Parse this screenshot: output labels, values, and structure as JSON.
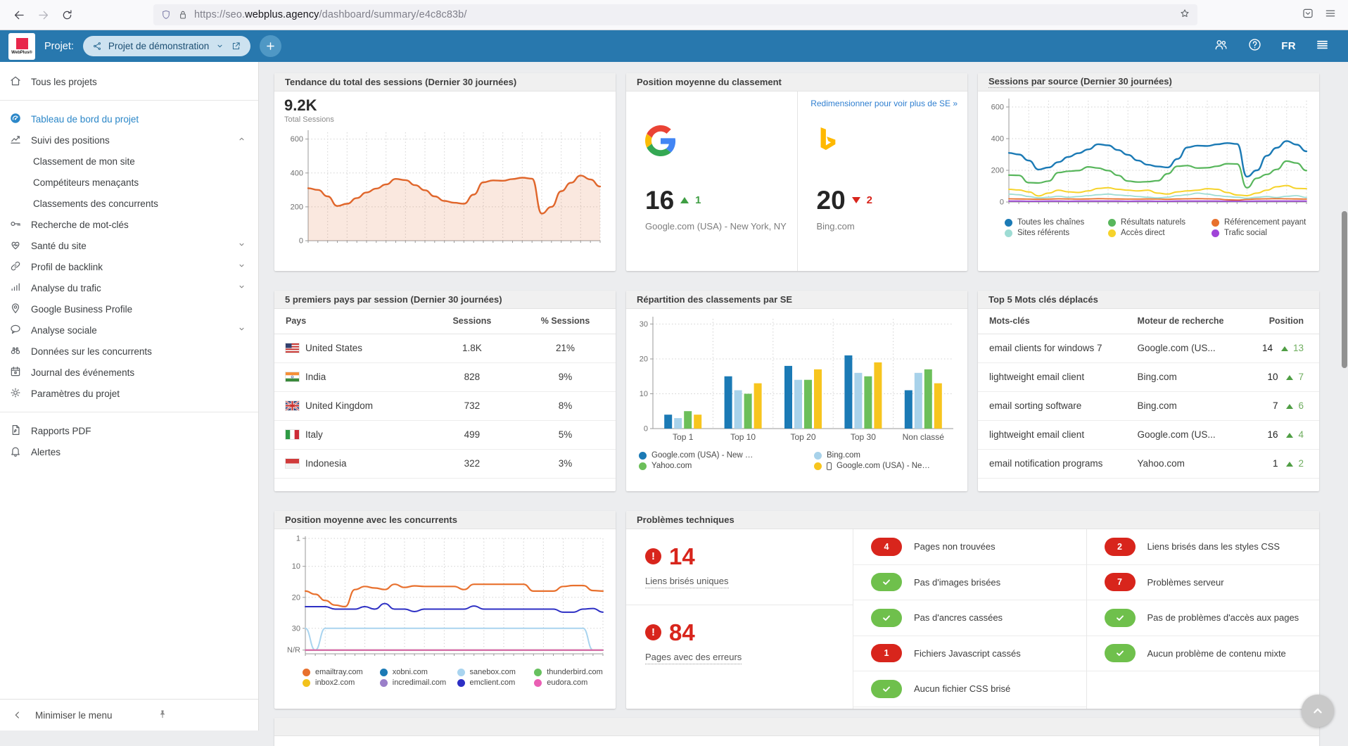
{
  "browser": {
    "url_protocol": "https://",
    "url_subdomain": "seo.",
    "url_domain": "webplus.agency",
    "url_path": "/dashboard/summary/e4c8c83b/"
  },
  "header": {
    "logo_text": "WebPlus®",
    "project_label": "Projet:",
    "project_name": "Projet de démonstration",
    "language": "FR",
    "accent_color": "#2878ae"
  },
  "sidebar": {
    "items": [
      {
        "icon": "home-icon",
        "label": "Tous les projets"
      },
      {
        "divider": true
      },
      {
        "icon": "dashboard-icon",
        "label": "Tableau de bord du projet",
        "active": true
      },
      {
        "icon": "positions-icon",
        "label": "Suivi des positions",
        "chevron": "up"
      },
      {
        "sub": true,
        "label": "Classement de mon site"
      },
      {
        "sub": true,
        "label": "Compétiteurs menaçants"
      },
      {
        "sub": true,
        "label": "Classements des concurrents"
      },
      {
        "icon": "key-icon",
        "label": "Recherche de mot-clés"
      },
      {
        "icon": "health-icon",
        "label": "Santé du site",
        "chevron": "down"
      },
      {
        "icon": "backlink-icon",
        "label": "Profil de backlink",
        "chevron": "down"
      },
      {
        "icon": "traffic-icon",
        "label": "Analyse du trafic",
        "chevron": "down"
      },
      {
        "icon": "gbp-icon",
        "label": "Google Business Profile"
      },
      {
        "icon": "social-icon",
        "label": "Analyse sociale",
        "chevron": "down"
      },
      {
        "icon": "competitors-icon",
        "label": "Données sur les concurrents"
      },
      {
        "icon": "events-icon",
        "label": "Journal des événements"
      },
      {
        "icon": "settings-icon",
        "label": "Paramètres du projet"
      },
      {
        "divider": true
      },
      {
        "icon": "pdf-icon",
        "label": "Rapports PDF"
      },
      {
        "icon": "alerts-icon",
        "label": "Alertes"
      }
    ],
    "footer": {
      "collapse_label": "Minimiser le menu"
    }
  },
  "cards": {
    "sessions_trend": {
      "title": "Tendance du total des sessions (Dernier 30 journées)",
      "total": "9.2K",
      "total_label": "Total Sessions"
    },
    "avg_position": {
      "title": "Position moyenne du classement",
      "resize_link": "Redimensionner pour voir plus de SE »",
      "engines": [
        {
          "engine": "google",
          "value": "16",
          "direction": "up",
          "change": "1",
          "caption": "Google.com (USA) - New York, NY"
        },
        {
          "engine": "bing",
          "value": "20",
          "direction": "down",
          "change": "2",
          "caption": "Bing.com"
        }
      ]
    },
    "sessions_by_source": {
      "title": "Sessions par source (Dernier 30 journées)"
    },
    "top_countries": {
      "title": "5 premiers pays par session (Dernier 30 journées)",
      "columns": [
        "Pays",
        "Sessions",
        "% Sessions"
      ],
      "rows": [
        {
          "flag": "us",
          "country": "United States",
          "sessions": "1.8K",
          "pct": "21%"
        },
        {
          "flag": "in",
          "country": "India",
          "sessions": "828",
          "pct": "9%"
        },
        {
          "flag": "uk",
          "country": "United Kingdom",
          "sessions": "732",
          "pct": "8%"
        },
        {
          "flag": "it",
          "country": "Italy",
          "sessions": "499",
          "pct": "5%"
        },
        {
          "flag": "id",
          "country": "Indonesia",
          "sessions": "322",
          "pct": "3%"
        }
      ]
    },
    "rankings_by_se": {
      "title": "Répartition des classements par SE"
    },
    "top_keywords": {
      "title": "Top 5 Mots clés déplacés",
      "columns": [
        "Mots-clés",
        "Moteur de recherche",
        "Position"
      ],
      "rows": [
        {
          "keyword": "email clients for windows 7",
          "engine": "Google.com (US...",
          "position": "14",
          "change": "13"
        },
        {
          "keyword": "lightweight email client",
          "engine": "Bing.com",
          "position": "10",
          "change": "7"
        },
        {
          "keyword": "email sorting software",
          "engine": "Bing.com",
          "position": "7",
          "change": "6"
        },
        {
          "keyword": "lightweight email client",
          "engine": "Google.com (US...",
          "position": "16",
          "change": "4"
        },
        {
          "keyword": "email notification programs",
          "engine": "Yahoo.com",
          "position": "1",
          "change": "2"
        }
      ]
    },
    "competitors": {
      "title": "Position moyenne avec les concurrents"
    },
    "technical": {
      "title": "Problèmes techniques",
      "stats": [
        {
          "value": "14",
          "label": "Liens brisés uniques"
        },
        {
          "value": "84",
          "label": "Pages avec des erreurs"
        }
      ],
      "checks_col1": [
        {
          "status": "error",
          "badge": "4",
          "label": "Pages non trouvées"
        },
        {
          "status": "ok",
          "label": "Pas d'images brisées"
        },
        {
          "status": "ok",
          "label": "Pas d'ancres cassées"
        },
        {
          "status": "error",
          "badge": "1",
          "label": "Fichiers Javascript cassés"
        },
        {
          "status": "ok",
          "label": "Aucun fichier CSS brisé"
        }
      ],
      "checks_col2": [
        {
          "status": "error",
          "badge": "2",
          "label": "Liens brisés dans les styles CSS"
        },
        {
          "status": "error",
          "badge": "7",
          "label": "Problèmes serveur"
        },
        {
          "status": "ok",
          "label": "Pas de problèmes d'accès aux pages"
        },
        {
          "status": "ok",
          "label": "Aucun problème de contenu mixte"
        }
      ],
      "error_color": "#d8251c",
      "ok_color": "#6fc04c"
    }
  },
  "chart_data": [
    {
      "id": "sessions-trend",
      "type": "area",
      "title": "Tendance du total des sessions (Dernier 30 journées)",
      "ylim": [
        0,
        640
      ],
      "yticks": [
        0,
        200,
        400,
        600
      ],
      "grid": "dotted",
      "legend_position": "none",
      "series": [
        {
          "name": "Total Sessions",
          "color": "#e0662b",
          "width": 2.4,
          "fill": "rgba(224,102,43,0.15)",
          "values": [
            310,
            300,
            262,
            205,
            218,
            252,
            285,
            308,
            332,
            365,
            358,
            328,
            298,
            262,
            235,
            224,
            218,
            272,
            345,
            356,
            354,
            364,
            372,
            366,
            160,
            200,
            292,
            342,
            385,
            362,
            320
          ]
        }
      ]
    },
    {
      "id": "sessions-by-source",
      "type": "line",
      "title": "Sessions par source (Dernier 30 journées)",
      "ylim": [
        0,
        640
      ],
      "yticks": [
        0,
        200,
        400,
        600
      ],
      "grid": "dotted",
      "legend_position": "bottom",
      "series": [
        {
          "name": "Toutes les chaînes",
          "color": "#1b7ab5",
          "width": 2.4,
          "values": [
            310,
            300,
            262,
            205,
            218,
            252,
            285,
            308,
            332,
            365,
            358,
            328,
            298,
            262,
            235,
            224,
            218,
            272,
            345,
            356,
            354,
            364,
            372,
            366,
            160,
            200,
            292,
            342,
            385,
            362,
            320
          ]
        },
        {
          "name": "Résultats naturels",
          "color": "#58b65c",
          "width": 2.2,
          "values": [
            170,
            168,
            122,
            120,
            132,
            186,
            194,
            198,
            222,
            214,
            198,
            168,
            132,
            126,
            128,
            134,
            178,
            226,
            230,
            214,
            216,
            226,
            242,
            240,
            90,
            150,
            174,
            206,
            258,
            246,
            198
          ]
        },
        {
          "name": "Référencement payant",
          "color": "#e8702d",
          "width": 1.8,
          "values": [
            20,
            19,
            18,
            17,
            18,
            20,
            19,
            18,
            19,
            21,
            20,
            19,
            18,
            18,
            19,
            18,
            17,
            19,
            20,
            21,
            20,
            19,
            14,
            12,
            16,
            19,
            20,
            21,
            20,
            19,
            18
          ]
        },
        {
          "name": "Sites référents",
          "color": "#9edcd4",
          "width": 1.8,
          "values": [
            50,
            46,
            34,
            26,
            30,
            36,
            30,
            34,
            40,
            46,
            50,
            44,
            40,
            34,
            30,
            26,
            30,
            40,
            46,
            56,
            50,
            40,
            34,
            30,
            24,
            30,
            34,
            28,
            36,
            40,
            28
          ]
        },
        {
          "name": "Accès direct",
          "color": "#f6d32b",
          "width": 2,
          "values": [
            80,
            76,
            64,
            38,
            56,
            74,
            64,
            60,
            70,
            86,
            90,
            80,
            74,
            70,
            74,
            56,
            50,
            64,
            70,
            74,
            84,
            80,
            60,
            44,
            40,
            56,
            74,
            96,
            104,
            86,
            84
          ]
        },
        {
          "name": "Trafic social",
          "color": "#a044d8",
          "width": 1.8,
          "values": [
            6,
            6,
            5,
            5,
            6,
            6,
            5,
            6,
            6,
            6,
            6,
            6,
            5,
            6,
            6,
            5,
            5,
            6,
            6,
            6,
            6,
            6,
            5,
            5,
            5,
            6,
            6,
            6,
            6,
            6,
            6
          ]
        }
      ]
    },
    {
      "id": "rankings-by-se",
      "type": "bar",
      "title": "Répartition des classements par SE",
      "categories": [
        "Top 1",
        "Top 10",
        "Top 20",
        "Top 30",
        "Non classé"
      ],
      "ylim": [
        0,
        31.5
      ],
      "yticks": [
        0,
        10,
        20,
        30
      ],
      "grid": "dotted",
      "legend_position": "bottom",
      "series": [
        {
          "name": "Google.com (USA) - New …",
          "color": "#1b7ab5",
          "values": [
            4,
            15,
            18,
            21,
            11
          ]
        },
        {
          "name": "Bing.com",
          "color": "#a8d2ea",
          "values": [
            3,
            11,
            14,
            16,
            16
          ]
        },
        {
          "name": "Yahoo.com",
          "color": "#6cbf5a",
          "values": [
            5,
            10,
            14,
            15,
            17
          ]
        },
        {
          "name": "Google.com (USA) - Ne…",
          "color": "#f7c51e",
          "mobile": true,
          "values": [
            4,
            13,
            17,
            19,
            13
          ]
        }
      ]
    },
    {
      "id": "competitors-position",
      "type": "line",
      "inverted": true,
      "title": "Position moyenne avec les concurrents",
      "ylim": [
        1,
        38.2
      ],
      "yticks": [
        {
          "v": 1,
          "label": "1"
        },
        {
          "v": 10,
          "label": "10"
        },
        {
          "v": 20,
          "label": "20"
        },
        {
          "v": 30,
          "label": "30"
        },
        {
          "v": 37,
          "label": "N/R"
        }
      ],
      "grid": "dotted",
      "legend_position": "bottom",
      "nr_value": 37,
      "series": [
        {
          "name": "emailtray.com",
          "color": "#e8702d",
          "width": 2.2,
          "values": [
            18,
            19,
            21,
            22.5,
            23,
            17.5,
            16.5,
            17,
            17.5,
            15.8,
            16.8,
            16.3,
            16.5,
            16.5,
            16.5,
            16.5,
            17.5,
            15.8,
            15.8,
            15.8,
            15.8,
            15.8,
            15.8,
            18,
            18,
            18,
            16.5,
            16.2,
            16.2,
            17.8,
            18
          ]
        },
        {
          "name": "xobni.com",
          "color": "#1b7ab5",
          "flat": 37
        },
        {
          "name": "sanebox.com",
          "color": "#a9d4ef",
          "width": 2,
          "values": [
            30,
            37,
            30,
            30,
            30,
            30,
            30,
            30,
            30,
            30,
            30,
            30,
            30,
            30,
            30,
            30,
            30,
            30,
            30,
            30,
            30,
            30,
            30,
            30,
            30,
            30,
            30,
            30,
            30,
            37,
            37
          ]
        },
        {
          "name": "thunderbird.com",
          "color": "#67c05f",
          "flat": 37
        },
        {
          "name": "inbox2.com",
          "color": "#f2c21c",
          "flat": 37
        },
        {
          "name": "incredimail.com",
          "color": "#9a7fc9",
          "flat": 37
        },
        {
          "name": "emclient.com",
          "color": "#2d2fc4",
          "width": 2,
          "values": [
            23,
            23,
            23,
            23.8,
            23.8,
            23.8,
            23,
            23.8,
            22,
            23.8,
            23.8,
            24.6,
            23.8,
            23.8,
            23.8,
            23.8,
            23.8,
            22.8,
            23.8,
            23.8,
            23.8,
            23.8,
            23.8,
            23.8,
            23.8,
            23.8,
            24.8,
            24.8,
            23.8,
            23.6,
            24.8
          ]
        },
        {
          "name": "eudora.com",
          "color": "#ea5fb4",
          "width": 1.6,
          "flat": 37
        }
      ]
    }
  ]
}
